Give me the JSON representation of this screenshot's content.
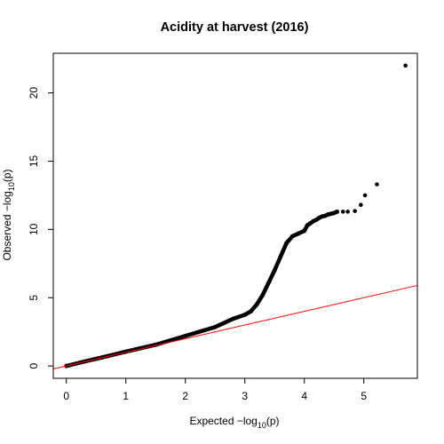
{
  "chart_data": {
    "type": "scatter",
    "title": "Acidity at harvest (2016)",
    "xlabel": {
      "pre": "Expected  −log",
      "sub": "10",
      "post": "(p)"
    },
    "ylabel": {
      "pre": "Observed  −log",
      "sub": "10",
      "post": "(p)"
    },
    "xlim": [
      -0.22,
      5.9
    ],
    "ylim": [
      -0.9,
      22.9
    ],
    "xticks": [
      "0",
      "1",
      "2",
      "3",
      "4",
      "5"
    ],
    "yticks": [
      "0",
      "5",
      "10",
      "15",
      "20"
    ],
    "grid": false,
    "reference_line": {
      "slope": 1,
      "intercept": 0,
      "color": "#ff0000"
    },
    "points": {
      "bulk": [
        [
          0.0,
          0.0
        ],
        [
          0.3,
          0.32
        ],
        [
          0.6,
          0.63
        ],
        [
          1.0,
          1.05
        ],
        [
          1.5,
          1.55
        ],
        [
          2.0,
          2.2
        ],
        [
          2.5,
          2.85
        ],
        [
          2.8,
          3.45
        ],
        [
          3.0,
          3.75
        ],
        [
          3.1,
          4.0
        ],
        [
          3.2,
          4.5
        ],
        [
          3.3,
          5.2
        ],
        [
          3.4,
          6.1
        ],
        [
          3.5,
          7.0
        ],
        [
          3.6,
          8.0
        ],
        [
          3.7,
          9.0
        ],
        [
          3.8,
          9.5
        ],
        [
          3.9,
          9.7
        ],
        [
          4.0,
          9.9
        ],
        [
          4.05,
          10.3
        ],
        [
          4.1,
          10.45
        ]
      ],
      "tail": [
        [
          4.1,
          10.45
        ],
        [
          4.15,
          10.6
        ],
        [
          4.2,
          10.7
        ],
        [
          4.25,
          10.85
        ],
        [
          4.3,
          10.95
        ],
        [
          4.35,
          11.0
        ],
        [
          4.4,
          11.1
        ],
        [
          4.45,
          11.15
        ],
        [
          4.5,
          11.2
        ],
        [
          4.55,
          11.3
        ]
      ],
      "outliers": [
        [
          4.65,
          11.3
        ],
        [
          4.73,
          11.3
        ],
        [
          4.85,
          11.35
        ],
        [
          4.95,
          11.8
        ],
        [
          5.02,
          12.5
        ],
        [
          5.22,
          13.3
        ],
        [
          5.7,
          22.0
        ]
      ]
    },
    "point_color": "#000000"
  }
}
